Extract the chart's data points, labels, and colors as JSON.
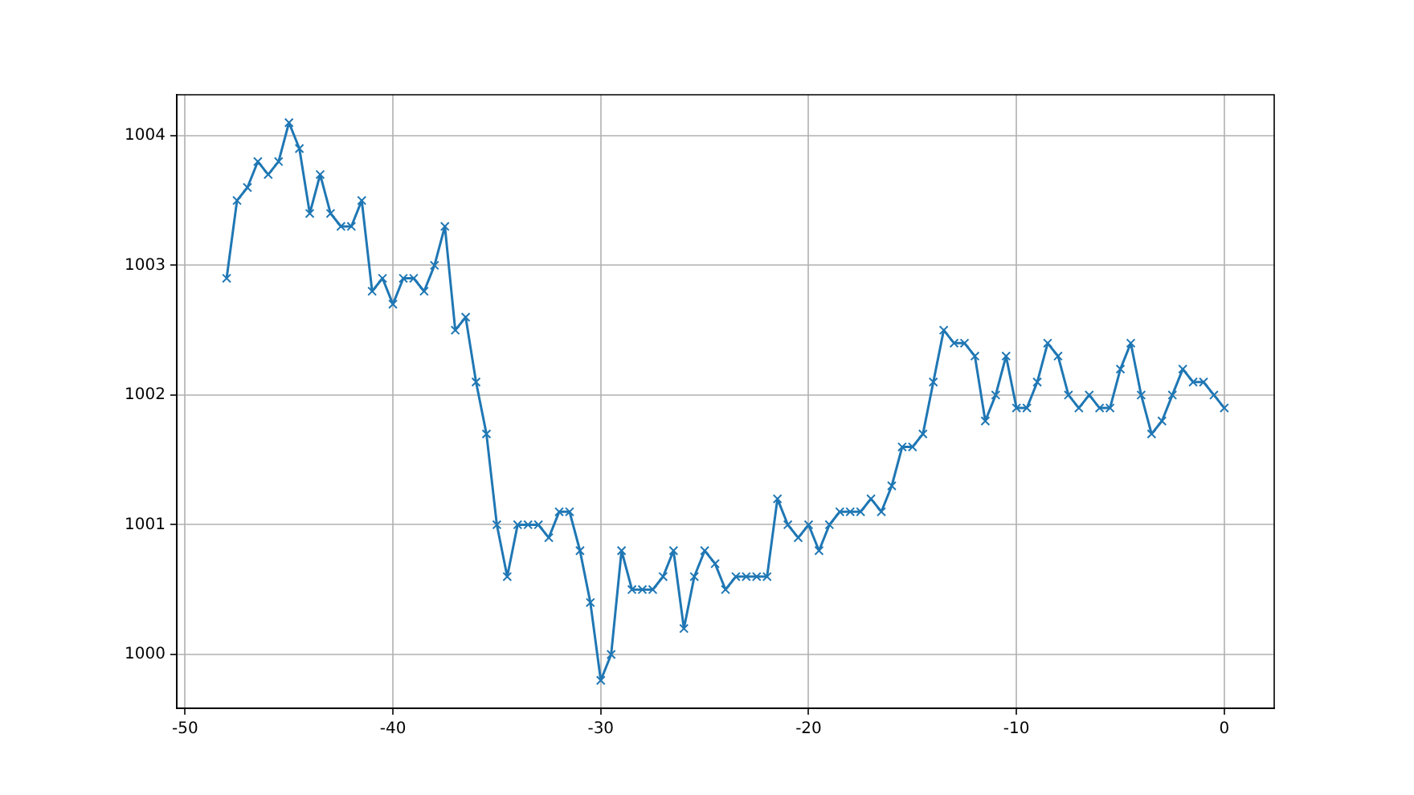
{
  "chart_data": {
    "type": "line",
    "x": [
      -48,
      -47.5,
      -47,
      -46.5,
      -46,
      -45.5,
      -45,
      -44.5,
      -44,
      -43.5,
      -43,
      -42.5,
      -42,
      -41.5,
      -41,
      -40.5,
      -40,
      -39.5,
      -39,
      -38.5,
      -38,
      -37.5,
      -37,
      -36.5,
      -36,
      -35.5,
      -35,
      -34.5,
      -34,
      -33.5,
      -33,
      -32.5,
      -32,
      -31.5,
      -31,
      -30.5,
      -30,
      -29.5,
      -29,
      -28.5,
      -28,
      -27.5,
      -27,
      -26.5,
      -26,
      -25.5,
      -25,
      -24.5,
      -24,
      -23.5,
      -23,
      -22.5,
      -22,
      -21.5,
      -21,
      -20.5,
      -20,
      -19.5,
      -19,
      -18.5,
      -18,
      -17.5,
      -17,
      -16.5,
      -16,
      -15.5,
      -15,
      -14.5,
      -14,
      -13.5,
      -13,
      -12.5,
      -12,
      -11.5,
      -11,
      -10.5,
      -10,
      -9.5,
      -9,
      -8.5,
      -8,
      -7.5,
      -7,
      -6.5,
      -6,
      -5.5,
      -5,
      -4.5,
      -4,
      -3.5,
      -3,
      -2.5,
      -2,
      -1.5,
      -1,
      -0.5,
      0
    ],
    "series": [
      {
        "color": "#1f77b4",
        "values": [
          1002.9,
          1003.5,
          1003.6,
          1003.8,
          1003.7,
          1003.8,
          1004.1,
          1003.9,
          1003.4,
          1003.7,
          1003.4,
          1003.3,
          1003.3,
          1003.5,
          1002.8,
          1002.9,
          1002.7,
          1002.9,
          1002.9,
          1002.8,
          1003.0,
          1003.3,
          1002.5,
          1002.6,
          1002.1,
          1001.7,
          1001.0,
          1000.6,
          1001.0,
          1001.0,
          1001.0,
          1000.9,
          1001.1,
          1001.1,
          1000.8,
          1000.4,
          999.8,
          1000.0,
          1000.8,
          1000.5,
          1000.5,
          1000.5,
          1000.6,
          1000.8,
          1000.2,
          1000.6,
          1000.8,
          1000.7,
          1000.5,
          1000.6,
          1000.6,
          1000.6,
          1000.6,
          1001.2,
          1001.0,
          1000.9,
          1001.0,
          1000.8,
          1001.0,
          1001.1,
          1001.1,
          1001.1,
          1001.2,
          1001.1,
          1001.3,
          1001.6,
          1001.6,
          1001.7,
          1002.1,
          1002.5,
          1002.4,
          1002.4,
          1002.3,
          1001.8,
          1002.0,
          1002.3,
          1001.9,
          1001.9,
          1002.1,
          1002.4,
          1002.3,
          1002.0,
          1001.9,
          1002.0,
          1001.9,
          1001.9,
          1002.2,
          1002.4,
          1002.0,
          1001.7,
          1001.8,
          1002.0,
          1002.2,
          1002.1,
          1002.1,
          1002.0,
          1001.9
        ]
      }
    ],
    "xlim": [
      -50.4,
      2.4
    ],
    "ylim": [
      999.585,
      1004.315
    ],
    "xticks": [
      -50,
      -40,
      -30,
      -20,
      -10,
      0
    ],
    "yticks": [
      1000,
      1001,
      1002,
      1003,
      1004
    ],
    "grid": true,
    "marker": "cross",
    "line_style": "solid"
  }
}
